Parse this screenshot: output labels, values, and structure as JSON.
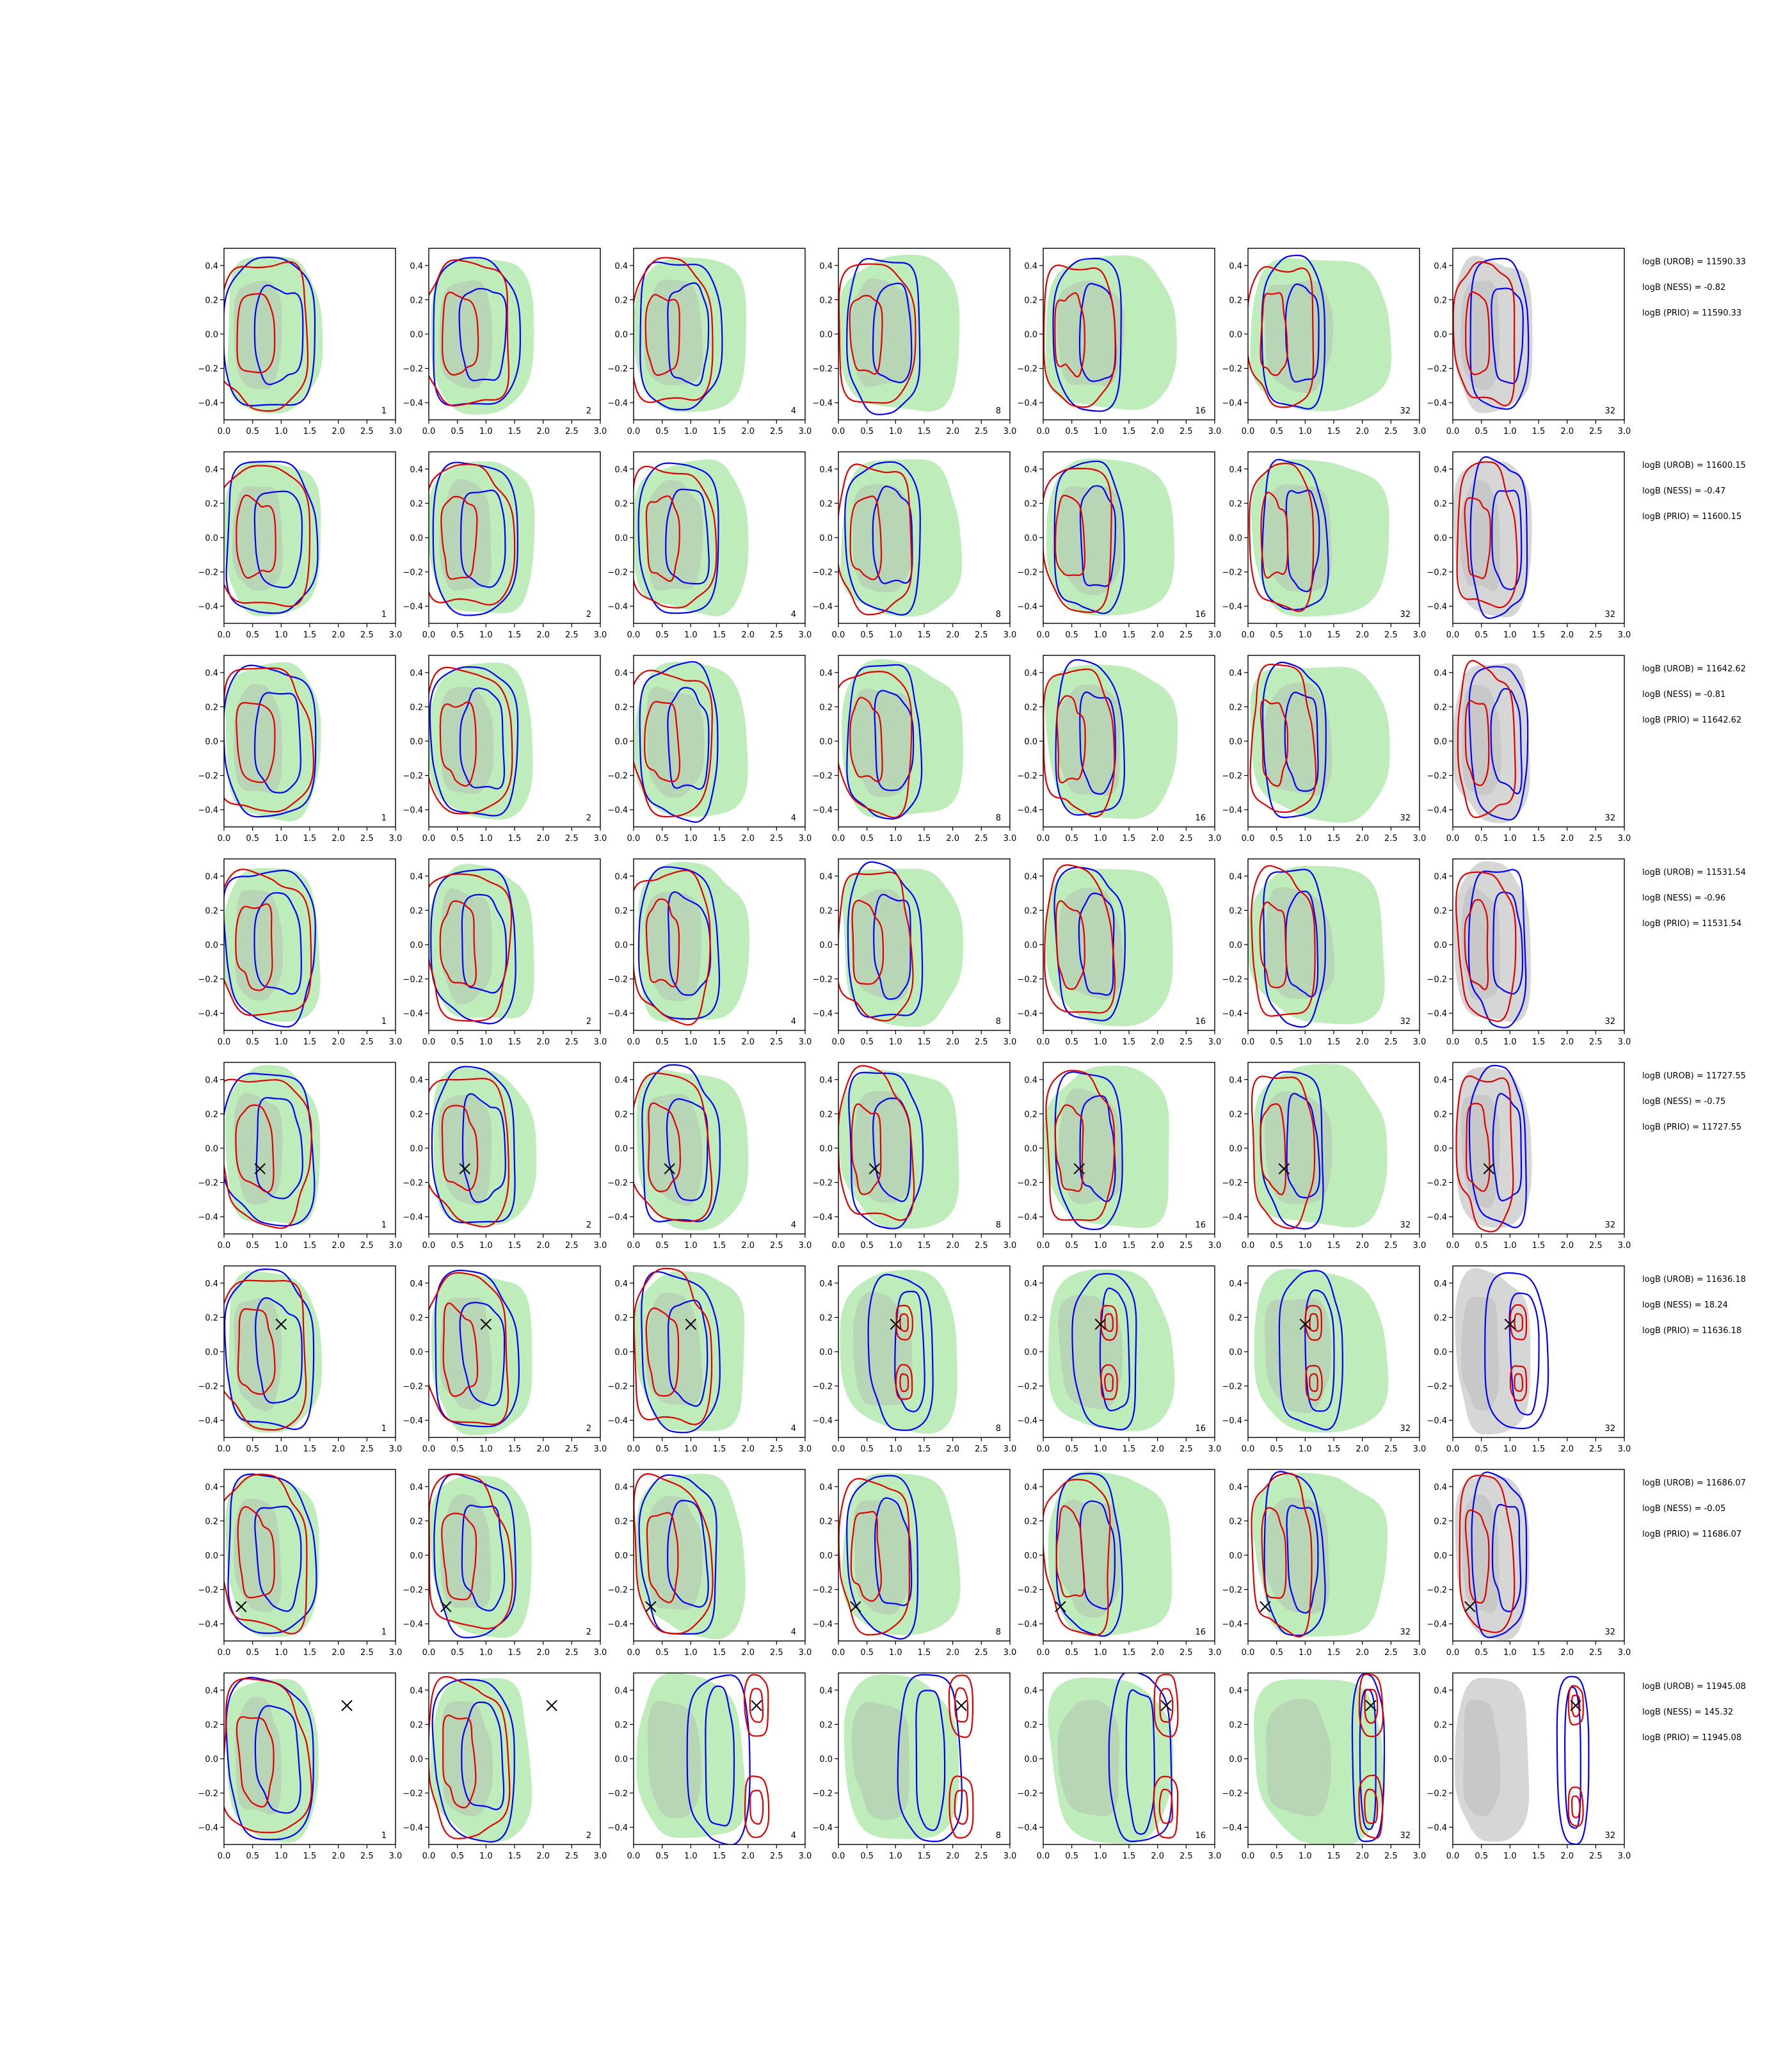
{
  "chart_data": {
    "type": "contour-grid",
    "xlim": [
      0,
      3.0
    ],
    "ylim": [
      -0.5,
      0.5
    ],
    "xticks": [
      0.0,
      0.5,
      1.0,
      1.5,
      2.0,
      2.5,
      3.0
    ],
    "yticks": [
      -0.4,
      -0.2,
      0.0,
      0.2,
      0.4
    ],
    "xtick_labels": [
      "0.0",
      "0.5",
      "1.0",
      "1.5",
      "2.0",
      "2.5",
      "3.0"
    ],
    "ytick_labels": [
      "−0.4",
      "−0.2",
      "0.0",
      "0.2",
      "0.4"
    ],
    "column_labels": [
      "1",
      "2",
      "4",
      "8",
      "16",
      "32",
      "32"
    ],
    "colors": {
      "green_fill": "#a8e6a3",
      "grey_fill": "#c8c8c8",
      "blue_line": "#0000ff",
      "red_line": "#e00000",
      "marker": "#000000"
    },
    "rows": [
      {
        "marker": null,
        "logB": [
          "logB (UROB) = 11590.33",
          "logB (NESS) = -0.82",
          "logB (PRIO) = 11590.33"
        ]
      },
      {
        "marker": null,
        "logB": [
          "logB (UROB) = 11600.15",
          "logB (NESS) = -0.47",
          "logB (PRIO) = 11600.15"
        ]
      },
      {
        "marker": null,
        "logB": [
          "logB (UROB) = 11642.62",
          "logB (NESS) = -0.81",
          "logB (PRIO) = 11642.62"
        ]
      },
      {
        "marker": null,
        "logB": [
          "logB (UROB) = 11531.54",
          "logB (NESS) = -0.96",
          "logB (PRIO) = 11531.54"
        ]
      },
      {
        "marker": [
          0.63,
          -0.12
        ],
        "logB": [
          "logB (UROB) = 11727.55",
          "logB (NESS) = -0.75",
          "logB (PRIO) = 11727.55"
        ]
      },
      {
        "marker": [
          1.0,
          0.16
        ],
        "logB": [
          "logB (UROB) = 11636.18",
          "logB (NESS) = 18.24",
          "logB (PRIO) = 11636.18"
        ]
      },
      {
        "marker": [
          0.3,
          -0.3
        ],
        "logB": [
          "logB (UROB) = 11686.07",
          "logB (NESS) = -0.05",
          "logB (PRIO) = 11686.07"
        ]
      },
      {
        "marker": [
          2.15,
          0.31
        ],
        "logB": [
          "logB (UROB) = 11945.08",
          "logB (NESS) = 145.32",
          "logB (PRIO) = 11945.08"
        ]
      }
    ]
  }
}
